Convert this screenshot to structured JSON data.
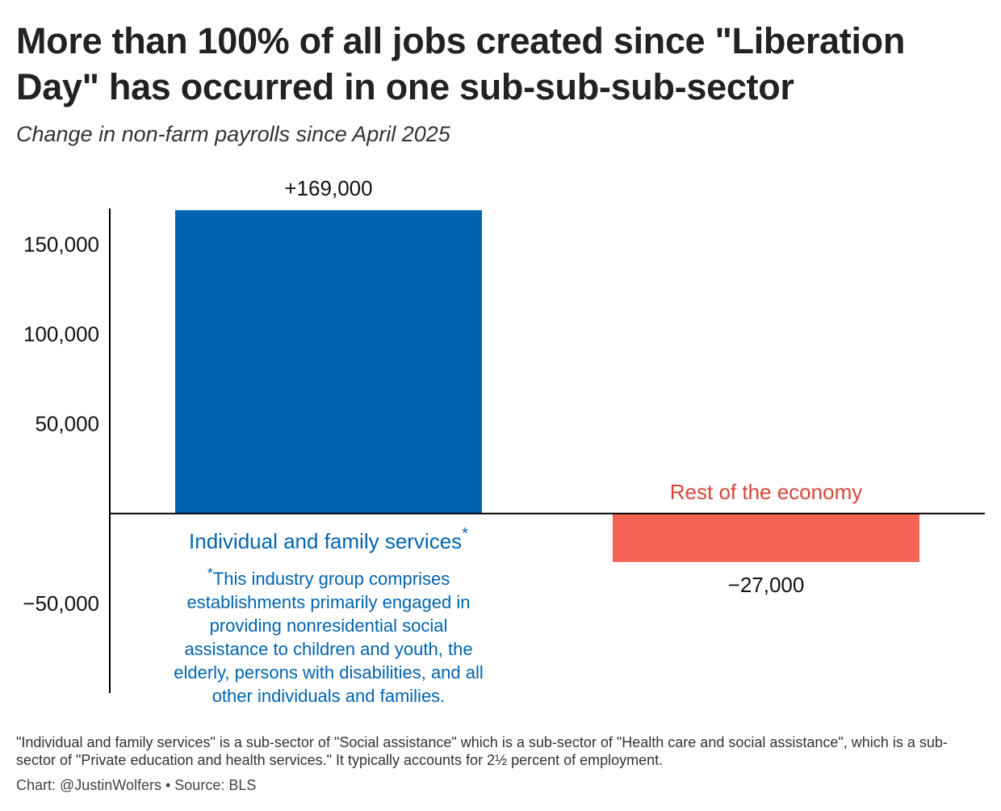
{
  "header": {
    "title": "More than 100% of all jobs created since \"Liberation Day\" has occurred in one sub-sub-sub-sector",
    "subtitle": "Change in non-farm payrolls since April 2025"
  },
  "chart_data": {
    "type": "bar",
    "title": "More than 100% of all jobs created since \"Liberation Day\" has occurred in one sub-sub-sub-sector",
    "subtitle": "Change in non-farm payrolls since April 2025",
    "xlabel": "",
    "ylabel": "",
    "categories": [
      "Individual and family services",
      "Rest of the economy"
    ],
    "values": [
      169000,
      -27000
    ],
    "data_labels": [
      "+169,000",
      "−27,000"
    ],
    "colors": [
      "#0064B1",
      "#F46455"
    ],
    "label_colors": [
      "#0064B1",
      "#D8463A"
    ],
    "category_asterisk": "*",
    "annotation": "This industry group comprises establishments primarily engaged in providing nonresidential social assistance to children and youth, the elderly, persons with disabilities, and all other individuals and families.",
    "annotation_lines": [
      "This industry group comprises",
      "establishments primarily engaged in",
      "providing nonresidential social",
      "assistance to children and youth, the",
      "elderly, persons with disabilities, and all",
      "other individuals and families."
    ],
    "yticks": [
      150000,
      100000,
      50000,
      -50000
    ],
    "ytick_labels": [
      "150,000",
      "100,000",
      "50,000",
      "−50,000"
    ],
    "ylim": [
      -100000,
      170000
    ],
    "grid": false
  },
  "footer": {
    "note": "\"Individual and family services\" is a sub-sector of \"Social assistance\" which is a sub-sector of \"Health care and social assistance\", which is a sub-sector of \"Private education and health services.\" It typically accounts for 2½ percent of employment.",
    "credit": "Chart: @JustinWolfers • Source: BLS"
  }
}
